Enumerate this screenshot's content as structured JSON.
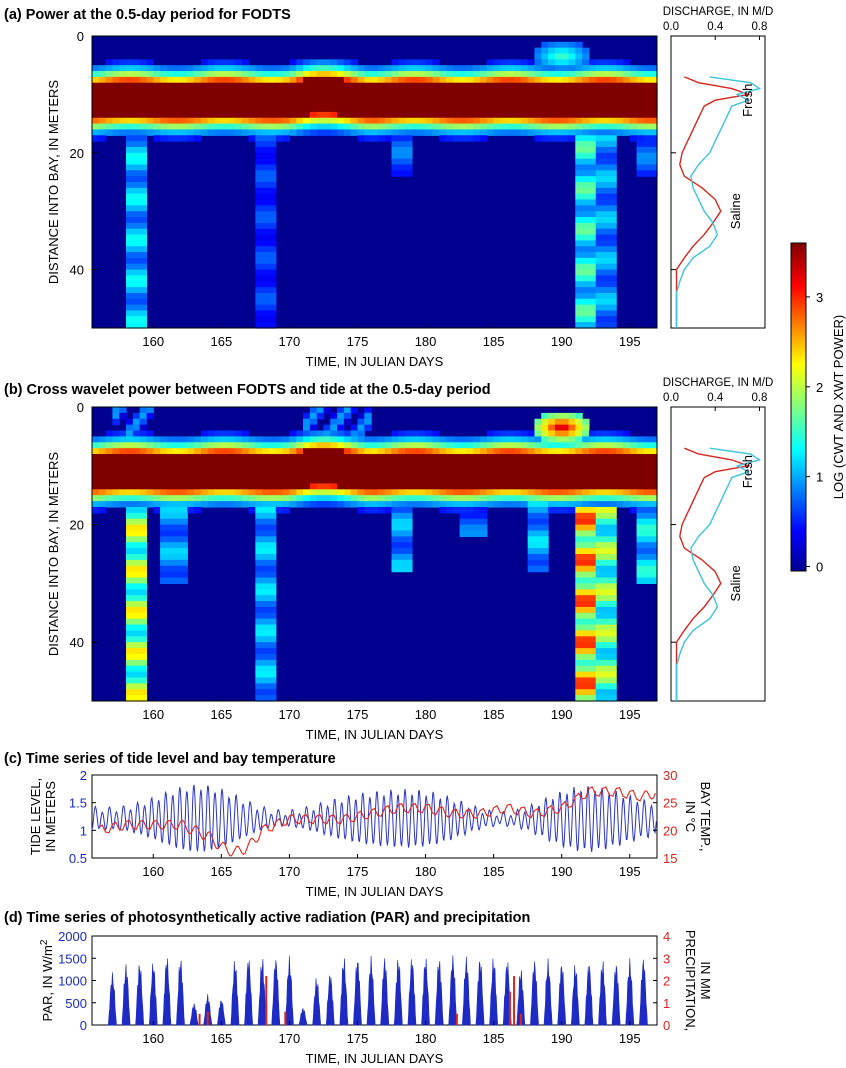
{
  "titles": {
    "a": "(a) Power at the 0.5-day period for FODTS",
    "b": "(b) Cross wavelet power between FODTS and tide at the 0.5-day period",
    "c": "(c) Time series of tide level and bay temperature",
    "d": "(d) Time series of photosynthetically active radiation (PAR) and precipitation"
  },
  "colorbar": {
    "label": "LOG (CWT AND XWT POWER)",
    "ticks": [
      "0",
      "1",
      "2",
      "3"
    ],
    "range": [
      -0.05,
      3.6
    ]
  },
  "chart_data": [
    {
      "type": "heatmap",
      "id": "a",
      "title": "(a) Power at the 0.5-day period for FODTS",
      "xlabel": "TIME, IN JULIAN DAYS",
      "ylabel": "DISTANCE INTO BAY, IN METERS",
      "xlim": [
        155.5,
        197
      ],
      "ylim": [
        0,
        50
      ],
      "x_ticks": [
        "160",
        "165",
        "170",
        "175",
        "180",
        "185",
        "190",
        "195"
      ],
      "y_ticks": [
        "0",
        "20",
        "40"
      ],
      "value_scale": "log power, 0 to 3.5",
      "high_band": {
        "distance_m": [
          8,
          14
        ],
        "value": 3.5
      },
      "notable_features": [
        {
          "x": [
            188,
            193
          ],
          "y": [
            0,
            7
          ],
          "value": 1.5
        },
        {
          "x": [
            158,
            159
          ],
          "y": [
            17,
            50
          ],
          "value": 0.8
        },
        {
          "x": [
            191,
            192
          ],
          "y": [
            17,
            50
          ],
          "value": 1.2
        }
      ]
    },
    {
      "type": "line",
      "id": "a-side",
      "title": "DISCHARGE, IN M/D",
      "x_ticks": [
        "0.0",
        "0.4",
        "0.8"
      ],
      "xlim": [
        0,
        0.85
      ],
      "ylim": [
        0,
        50
      ],
      "annotations": [
        "Fresh",
        "Saline"
      ],
      "series": [
        {
          "color": "#d7261e",
          "y": [
            7,
            8,
            9,
            10,
            11,
            12,
            14,
            16,
            18,
            20,
            22,
            24,
            26,
            28,
            30,
            32,
            34,
            36,
            38,
            40,
            42,
            44,
            46,
            48,
            50
          ],
          "values": [
            0.12,
            0.25,
            0.55,
            0.7,
            0.4,
            0.3,
            0.25,
            0.2,
            0.15,
            0.1,
            0.08,
            0.12,
            0.28,
            0.4,
            0.45,
            0.38,
            0.3,
            0.2,
            0.12,
            0.05,
            0.05,
            0.05,
            0.05,
            0.05,
            0.05
          ]
        },
        {
          "color": "#3ec4dc",
          "y": [
            7,
            8,
            9,
            10,
            11,
            12,
            14,
            16,
            18,
            20,
            22,
            24,
            26,
            28,
            30,
            32,
            34,
            36,
            38,
            40,
            42,
            44,
            46,
            48,
            50
          ],
          "values": [
            0.35,
            0.72,
            0.8,
            0.6,
            0.7,
            0.55,
            0.5,
            0.45,
            0.4,
            0.35,
            0.25,
            0.18,
            0.2,
            0.25,
            0.3,
            0.38,
            0.42,
            0.35,
            0.2,
            0.12,
            0.08,
            0.05,
            0.05,
            0.05,
            0.05
          ]
        }
      ]
    },
    {
      "type": "heatmap",
      "id": "b",
      "title": "(b) Cross wavelet power between FODTS and tide at the 0.5-day period",
      "xlabel": "TIME, IN JULIAN DAYS",
      "ylabel": "DISTANCE INTO BAY, IN METERS",
      "xlim": [
        155.5,
        197
      ],
      "ylim": [
        0,
        50
      ],
      "x_ticks": [
        "160",
        "165",
        "170",
        "175",
        "180",
        "185",
        "190",
        "195"
      ],
      "y_ticks": [
        "0",
        "20",
        "40"
      ],
      "value_scale": "log power, 0 to 3.5",
      "high_band": {
        "distance_m": [
          8,
          14
        ],
        "value": 3.5
      },
      "notable_features": [
        {
          "x": [
            188,
            193
          ],
          "y": [
            0,
            7
          ],
          "value": 3.2
        },
        {
          "x": [
            158,
            159.5
          ],
          "y": [
            17,
            50
          ],
          "value": 1.8
        },
        {
          "x": [
            191,
            193
          ],
          "y": [
            17,
            50
          ],
          "value": 2.4
        }
      ]
    },
    {
      "type": "line",
      "id": "b-side",
      "title": "DISCHARGE, IN M/D",
      "x_ticks": [
        "0.0",
        "0.4",
        "0.8"
      ],
      "xlim": [
        0,
        0.85
      ],
      "ylim": [
        0,
        50
      ],
      "annotations": [
        "Fresh",
        "Saline"
      ],
      "series": [
        {
          "color": "#d7261e",
          "y": [
            7,
            8,
            9,
            10,
            11,
            12,
            14,
            16,
            18,
            20,
            22,
            24,
            26,
            28,
            30,
            32,
            34,
            36,
            38,
            40,
            42,
            44,
            46,
            48,
            50
          ],
          "values": [
            0.12,
            0.25,
            0.55,
            0.7,
            0.4,
            0.3,
            0.25,
            0.2,
            0.15,
            0.1,
            0.08,
            0.12,
            0.28,
            0.4,
            0.45,
            0.38,
            0.3,
            0.2,
            0.12,
            0.05,
            0.05,
            0.05,
            0.05,
            0.05,
            0.05
          ]
        },
        {
          "color": "#3ec4dc",
          "y": [
            7,
            8,
            9,
            10,
            11,
            12,
            14,
            16,
            18,
            20,
            22,
            24,
            26,
            28,
            30,
            32,
            34,
            36,
            38,
            40,
            42,
            44,
            46,
            48,
            50
          ],
          "values": [
            0.35,
            0.72,
            0.8,
            0.6,
            0.7,
            0.55,
            0.5,
            0.45,
            0.4,
            0.35,
            0.25,
            0.18,
            0.2,
            0.25,
            0.3,
            0.38,
            0.42,
            0.35,
            0.2,
            0.12,
            0.08,
            0.05,
            0.05,
            0.05,
            0.05
          ]
        }
      ]
    },
    {
      "type": "line",
      "id": "c",
      "title": "(c) Time series of tide level and bay temperature",
      "xlabel": "TIME, IN JULIAN DAYS",
      "ylabel_left": "TIDE LEVEL, IN METERS",
      "ylabel_right": "BAY TEMP., IN °C",
      "xlim": [
        155.5,
        197
      ],
      "ylim_left": [
        0.5,
        2
      ],
      "ylim_right": [
        15,
        30
      ],
      "x_ticks": [
        "160",
        "165",
        "170",
        "175",
        "180",
        "185",
        "190",
        "195"
      ],
      "y_ticks_left": [
        "0.5",
        "1",
        "1.5",
        "2"
      ],
      "y_ticks_right": [
        "15",
        "20",
        "25",
        "30"
      ],
      "series": [
        {
          "name": "tide",
          "color": "#2b35c8",
          "axis": "left",
          "model": "semidiurnal (0.5-day period) oscillation, mean ~1.2 m, amplitude ~0.25-0.6 m varying with spring-neap cycle"
        },
        {
          "name": "temperature",
          "color": "#e0241b",
          "axis": "right",
          "x": [
            156,
            158,
            160,
            162,
            163,
            164,
            165,
            166,
            167,
            168,
            170,
            172,
            174,
            176,
            178,
            180,
            182,
            184,
            186,
            188,
            190,
            192,
            194,
            196,
            197
          ],
          "values": [
            20,
            21,
            21,
            21,
            20,
            19,
            17,
            16,
            17,
            20,
            22,
            22,
            22,
            23,
            24,
            24,
            23,
            23,
            24,
            23,
            24,
            27,
            27,
            26,
            27
          ]
        }
      ]
    },
    {
      "type": "area",
      "id": "d",
      "title": "(d) Time series of photosynthetically active radiation (PAR) and precipitation",
      "xlabel": "TIME, IN JULIAN DAYS",
      "ylabel_left": "PAR, IN W/m2",
      "ylabel_right": "PRECIPITATION, IN MM",
      "xlim": [
        155.5,
        197
      ],
      "ylim_left": [
        0,
        2000
      ],
      "ylim_right": [
        0,
        4
      ],
      "x_ticks": [
        "160",
        "165",
        "170",
        "175",
        "180",
        "185",
        "190",
        "195"
      ],
      "y_ticks_left": [
        "0",
        "500",
        "1000",
        "1500",
        "2000"
      ],
      "y_ticks_right": [
        "0",
        "1",
        "2",
        "3",
        "4"
      ],
      "series": [
        {
          "name": "PAR",
          "color": "#1d2bc4",
          "x": [
            157,
            158,
            159,
            160,
            161,
            162,
            163,
            164,
            165,
            166,
            167,
            168,
            169,
            170,
            171,
            172,
            173,
            174,
            175,
            176,
            177,
            178,
            179,
            180,
            181,
            182,
            183,
            184,
            185,
            186,
            187,
            188,
            189,
            190,
            191,
            192,
            193,
            194,
            195,
            196
          ],
          "values": [
            1200,
            1400,
            1450,
            1450,
            1580,
            1550,
            500,
            700,
            600,
            1500,
            1560,
            1560,
            1560,
            1560,
            400,
            1100,
            1200,
            1560,
            1560,
            1560,
            1560,
            1560,
            1560,
            1560,
            1560,
            1600,
            1560,
            1560,
            1560,
            1500,
            1300,
            1500,
            1500,
            1450,
            1400,
            1450,
            1500,
            1450,
            1500,
            1550
          ]
        },
        {
          "name": "precipitation",
          "color": "#e0241b",
          "x": [
            163.4,
            164,
            168.3,
            169.7,
            182.3,
            186.2,
            186.5,
            187
          ],
          "values": [
            0.5,
            0.6,
            2.2,
            0.6,
            0.5,
            1.5,
            2.2,
            0.5
          ]
        }
      ]
    }
  ]
}
